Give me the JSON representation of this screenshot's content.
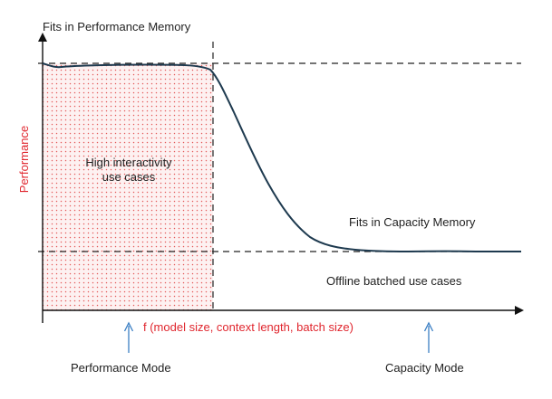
{
  "diagram": {
    "top_zone_label": "Fits in Performance Memory",
    "capacity_zone_label": "Fits in Capacity Memory",
    "high_interactivity_line1": "High interactivity",
    "high_interactivity_line2": "use cases",
    "offline_label": "Offline batched use cases",
    "y_axis_label": "Performance",
    "x_axis_label": "f (model size, context length, batch size)",
    "performance_mode_label": "Performance Mode",
    "capacity_mode_label": "Capacity Mode"
  },
  "colors": {
    "axis": "#111111",
    "curve": "#1e3a4f",
    "dashed": "#222222",
    "dot_fill": "#e45a5a",
    "region_bg": "#fdf1f1",
    "arrow_blue": "#3b7fc4",
    "accent_red": "#e0262e"
  }
}
